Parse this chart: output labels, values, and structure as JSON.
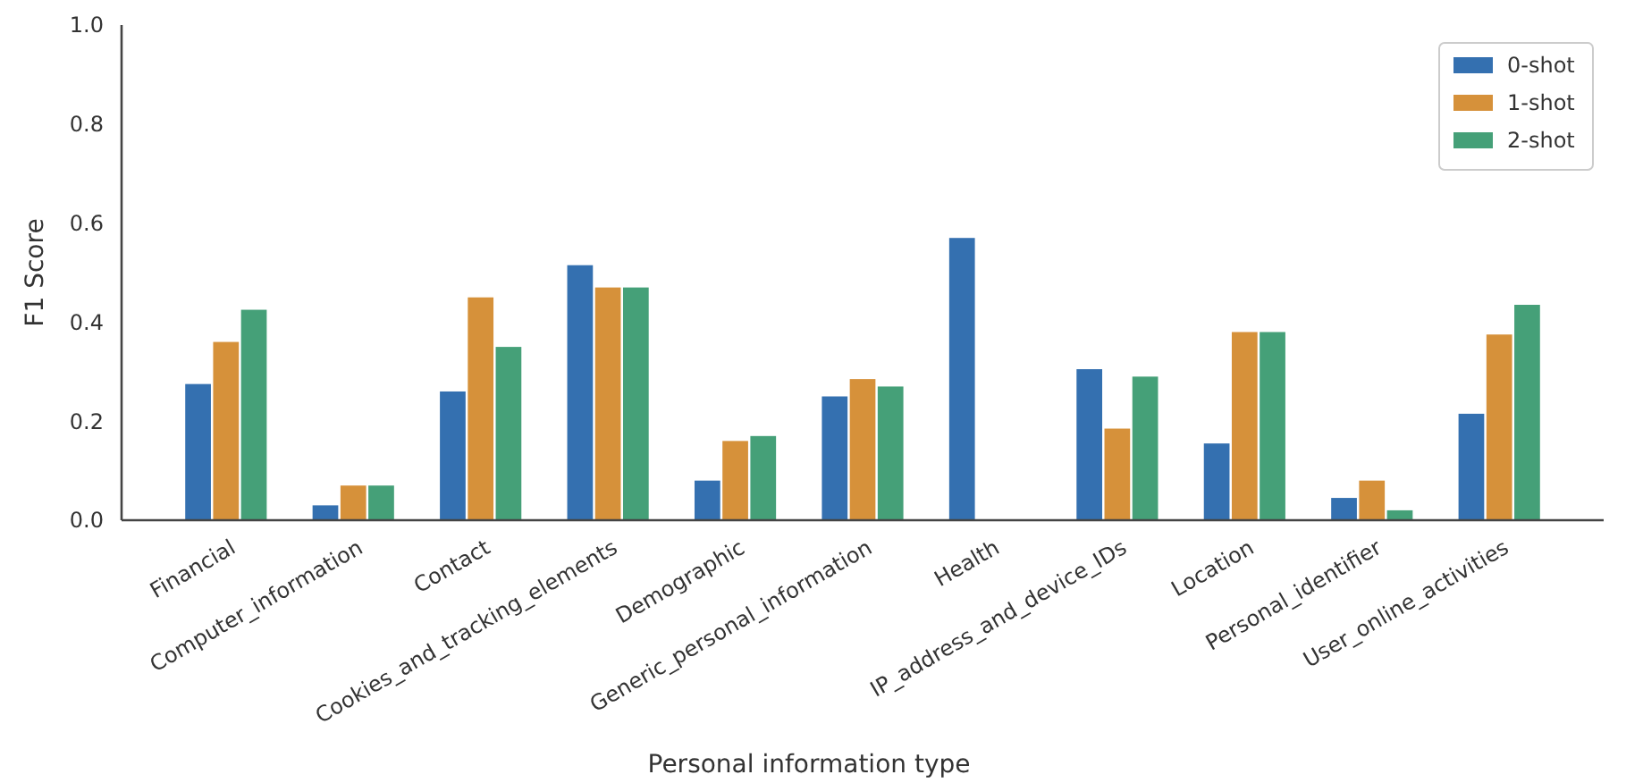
{
  "chart_data": {
    "type": "bar",
    "xlabel": "Personal information type",
    "ylabel": "F1 Score",
    "categories": [
      "Financial",
      "Computer_information",
      "Contact",
      "Cookies_and_tracking_elements",
      "Demographic",
      "Generic_personal_information",
      "Health",
      "IP_address_and_device_IDs",
      "Location",
      "Personal_identifier",
      "User_online_activities"
    ],
    "series": [
      {
        "name": "0-shot",
        "color": "#3470b0",
        "values": [
          0.275,
          0.03,
          0.26,
          0.515,
          0.08,
          0.25,
          0.57,
          0.305,
          0.155,
          0.045,
          0.215
        ]
      },
      {
        "name": "1-shot",
        "color": "#d6913a",
        "values": [
          0.36,
          0.07,
          0.45,
          0.47,
          0.16,
          0.285,
          0,
          0.185,
          0.38,
          0.08,
          0.375
        ]
      },
      {
        "name": "2-shot",
        "color": "#45a078",
        "values": [
          0.425,
          0.07,
          0.35,
          0.47,
          0.17,
          0.27,
          0,
          0.29,
          0.38,
          0.02,
          0.435
        ]
      }
    ],
    "ylim": [
      0,
      1
    ],
    "yticks": [
      {
        "value": 0,
        "label": "0.0"
      },
      {
        "value": 0.2,
        "label": "0.2"
      },
      {
        "value": 0.4,
        "label": "0.4"
      },
      {
        "value": 0.6,
        "label": "0.6"
      },
      {
        "value": 0.8,
        "label": "0.8"
      },
      {
        "value": 1,
        "label": "1.0"
      }
    ],
    "grid": false,
    "legend": "top right"
  }
}
